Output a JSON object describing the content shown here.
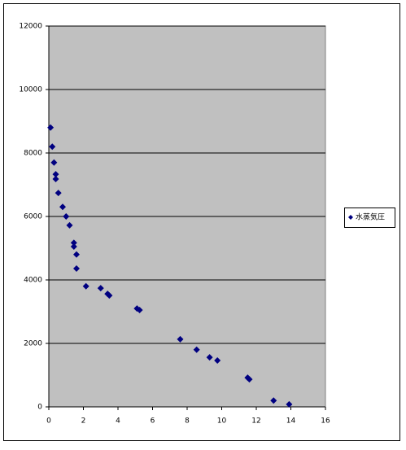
{
  "chart_data": {
    "type": "scatter",
    "series": [
      {
        "name": "水蒸気圧",
        "color": "#000080",
        "x": [
          0.1,
          0.2,
          0.3,
          0.4,
          0.4,
          0.55,
          0.8,
          1.0,
          1.2,
          1.45,
          1.45,
          1.6,
          1.6,
          2.15,
          3.0,
          3.4,
          3.5,
          5.1,
          5.25,
          7.6,
          8.55,
          9.3,
          9.75,
          11.5,
          11.6,
          13.0,
          13.9
        ],
        "values": [
          8800,
          8200,
          7700,
          7330,
          7180,
          6740,
          6300,
          6000,
          5720,
          5170,
          5050,
          4800,
          4360,
          3800,
          3740,
          3560,
          3510,
          3100,
          3050,
          2130,
          1800,
          1560,
          1460,
          920,
          870,
          200,
          80
        ]
      }
    ],
    "xlim": [
      0,
      16
    ],
    "xticks": [
      0,
      2,
      4,
      6,
      8,
      10,
      12,
      14,
      16
    ],
    "ylim": [
      0,
      12000
    ],
    "yticks": [
      0,
      2000,
      4000,
      6000,
      8000,
      10000,
      12000
    ],
    "grid": true,
    "legend": "right"
  }
}
